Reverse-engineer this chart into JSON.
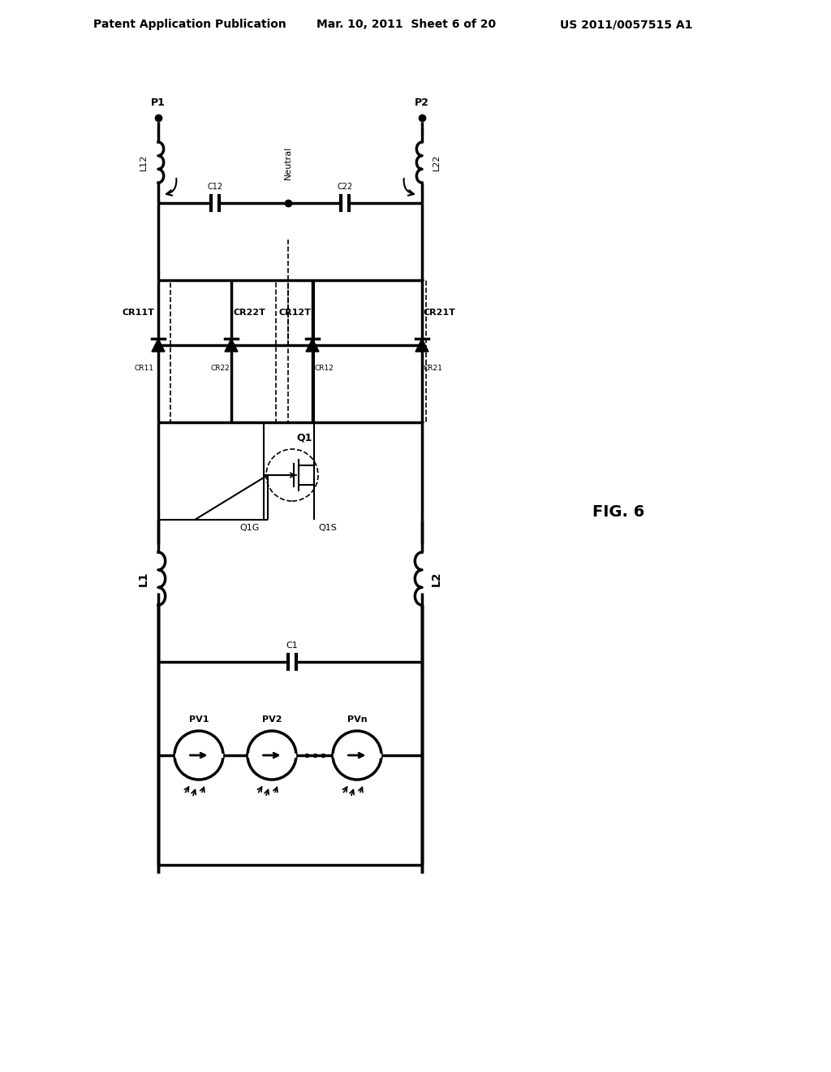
{
  "bg_color": "#ffffff",
  "line_color": "#000000",
  "header_left": "Patent Application Publication",
  "header_mid": "Mar. 10, 2011  Sheet 6 of 20",
  "header_right": "US 2011/0057515 A1",
  "fig_label": "FIG. 6",
  "title_fontsize": 11,
  "body_fontsize": 9,
  "lw": 2.5,
  "lw_thin": 1.2
}
